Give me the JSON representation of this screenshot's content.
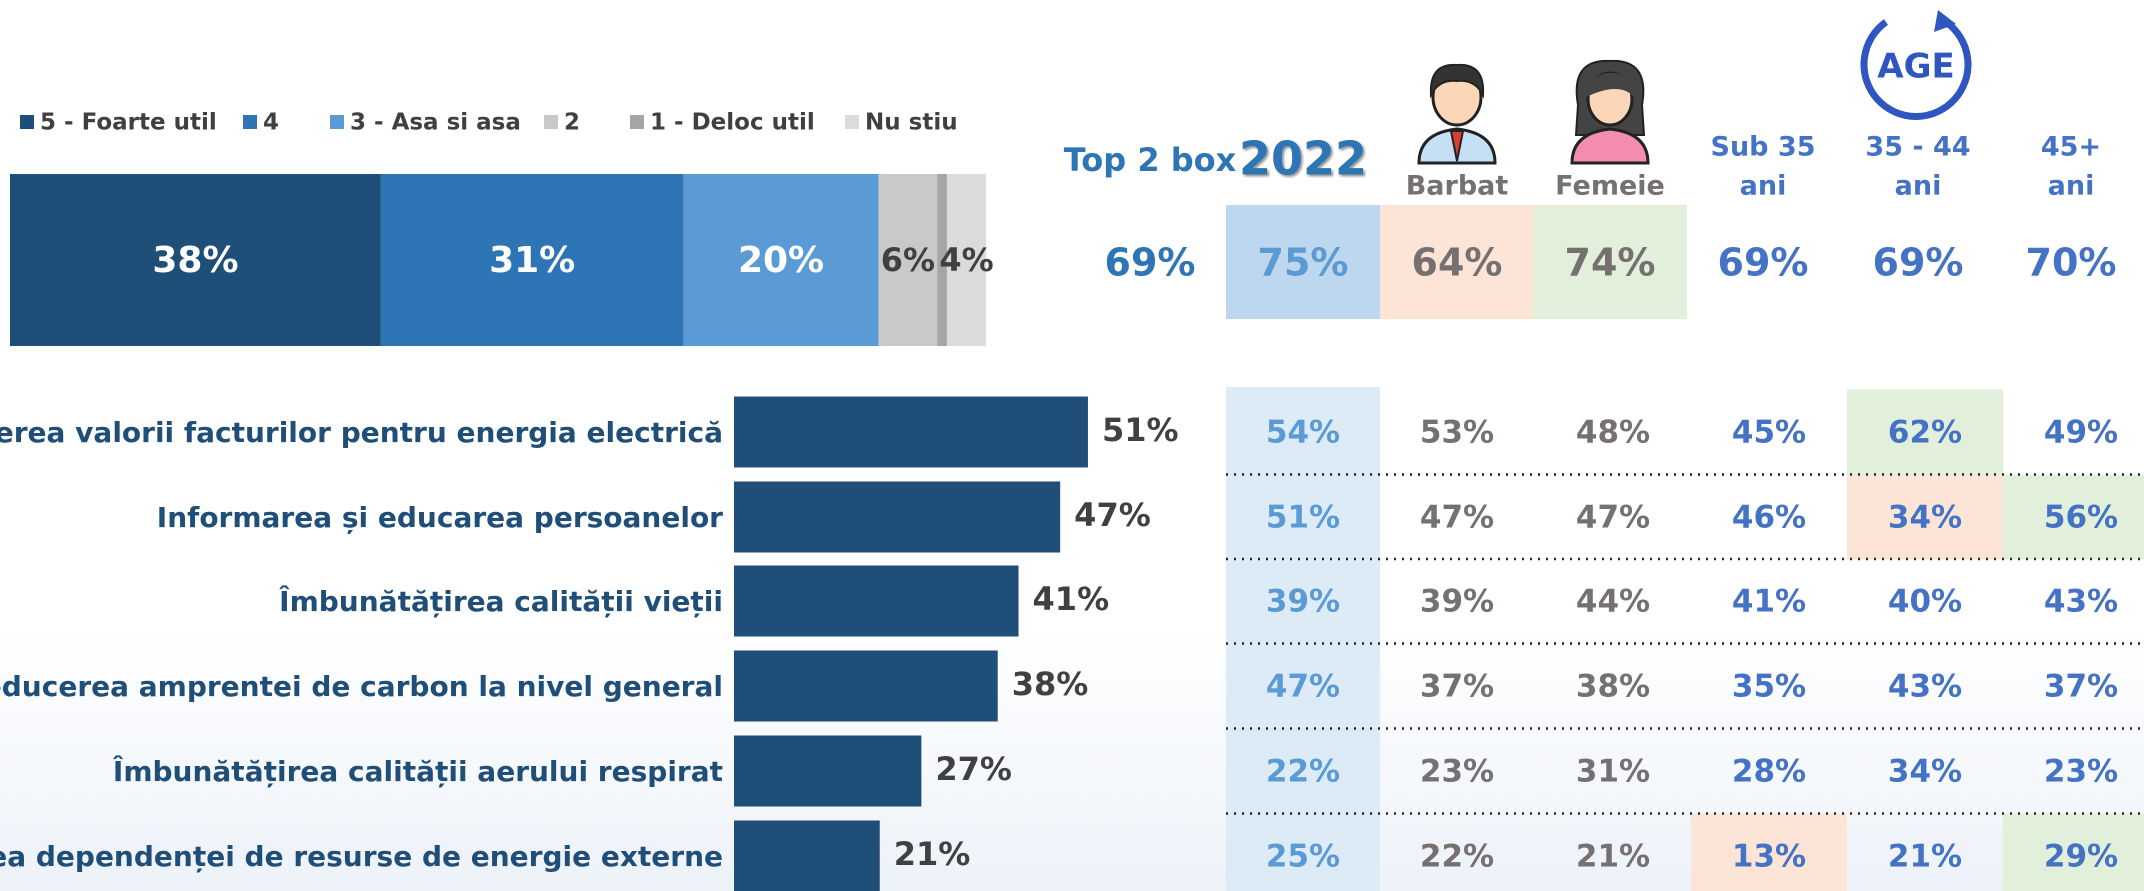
{
  "chart_data": [
    {
      "type": "stacked_bar",
      "series": [
        {
          "name": "5 - Foarte util",
          "color": "#1f4e79",
          "values": [
            38
          ],
          "value_labels": [
            "38%"
          ]
        },
        {
          "name": "4",
          "color": "#2e75b6",
          "values": [
            31
          ],
          "value_labels": [
            "31%"
          ]
        },
        {
          "name": "3 - Asa si asa",
          "color": "#5b9bd5",
          "values": [
            20
          ],
          "value_labels": [
            "20%"
          ]
        },
        {
          "name": "2",
          "color": "#c9c9c9",
          "values": [
            6
          ],
          "value_labels": [
            "6%"
          ]
        },
        {
          "name": "1 - Deloc util",
          "color": "#a5a5a5",
          "values": [
            1
          ]
        },
        {
          "name": "Nu stiu",
          "color": "#dbdbdb",
          "values": [
            4
          ],
          "value_labels": [
            "4%"
          ]
        }
      ]
    },
    {
      "type": "hbar",
      "categories": [
        "Reducerea valorii facturilor pentru energia electrică",
        "Informarea și educarea persoanelor",
        "Îmbunătățirea calității vieții",
        "Reducerea amprentei de carbon la nivel general",
        "Îmbunătățirea calității aerului respirat",
        "Reducerea dependenței de resurse de energie externe"
      ],
      "values": [
        51,
        47,
        41,
        38,
        27,
        21
      ],
      "value_labels": [
        "51%",
        "47%",
        "41%",
        "38%",
        "27%",
        "21%"
      ],
      "color": "#1f4e79"
    }
  ],
  "table": {
    "top2box": {
      "label": "Top 2 box",
      "value": "69%",
      "color": "#2e75b6"
    },
    "age_icon": "AGE",
    "columns": [
      {
        "header": [
          "2022"
        ],
        "header_color": "#2e75b6",
        "color": "#5b9bd5",
        "total": "75%",
        "total_fill": "#bdd7ee",
        "column_fill": "#ddebf7",
        "values": [
          "54%",
          "51%",
          "39%",
          "47%",
          "22%",
          "25%"
        ],
        "fills": [
          null,
          null,
          null,
          null,
          null,
          null
        ]
      },
      {
        "header": [
          "Barbat"
        ],
        "header_color": "#767171",
        "color": "#767171",
        "total": "64%",
        "total_fill": "#fce4d6",
        "values": [
          "53%",
          "47%",
          "39%",
          "37%",
          "23%",
          "22%"
        ],
        "fills": [
          null,
          null,
          null,
          null,
          null,
          null
        ]
      },
      {
        "header": [
          "Femeie"
        ],
        "header_color": "#767171",
        "color": "#767171",
        "total": "74%",
        "total_fill": "#e2efda",
        "values": [
          "48%",
          "47%",
          "44%",
          "38%",
          "31%",
          "21%"
        ],
        "fills": [
          null,
          null,
          null,
          null,
          null,
          null
        ]
      },
      {
        "header": [
          "Sub 35",
          "ani"
        ],
        "header_color": "#4472c4",
        "color": "#4472c4",
        "total": "69%",
        "values": [
          "45%",
          "46%",
          "41%",
          "35%",
          "28%",
          "13%"
        ],
        "fills": [
          null,
          null,
          null,
          null,
          null,
          "#fce4d6"
        ]
      },
      {
        "header": [
          "35 - 44",
          "ani"
        ],
        "header_color": "#4472c4",
        "color": "#4472c4",
        "total": "69%",
        "values": [
          "62%",
          "34%",
          "40%",
          "43%",
          "34%",
          "21%"
        ],
        "fills": [
          "#e2efda",
          "#fce4d6",
          null,
          null,
          null,
          null
        ]
      },
      {
        "header": [
          "45+",
          "ani"
        ],
        "header_color": "#4472c4",
        "color": "#4472c4",
        "total": "70%",
        "values": [
          "49%",
          "56%",
          "43%",
          "37%",
          "23%",
          "29%"
        ],
        "fills": [
          null,
          "#e2efda",
          null,
          null,
          null,
          "#e2efda"
        ]
      }
    ]
  }
}
